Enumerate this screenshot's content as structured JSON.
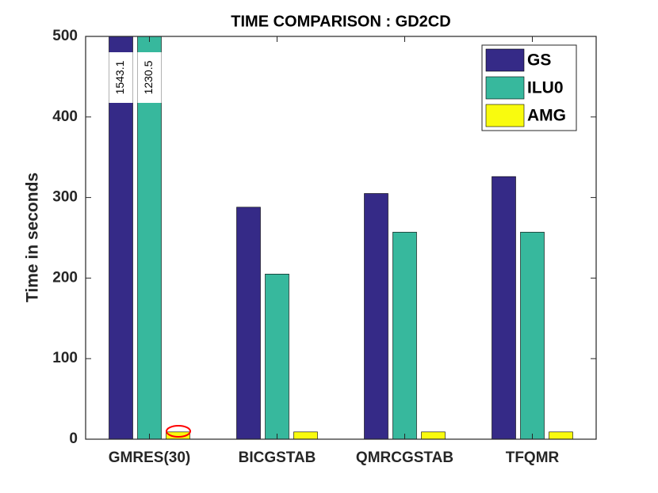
{
  "chart_data": {
    "type": "bar",
    "title": "TIME COMPARISON : GD2CD",
    "ylabel": "Time in seconds",
    "categories": [
      "GMRES(30)",
      "BICGSTAB",
      "QMRCGSTAB",
      "TFQMR"
    ],
    "series": [
      {
        "name": "GS",
        "color": "#352a87",
        "values": [
          1543.1,
          288,
          305,
          326
        ],
        "value_labels": [
          "1543.1",
          null,
          null,
          null
        ]
      },
      {
        "name": "ILU0",
        "color": "#37b89d",
        "values": [
          1230.5,
          205,
          257,
          257
        ],
        "value_labels": [
          "1230.5",
          null,
          null,
          null
        ]
      },
      {
        "name": "AMG",
        "color": "#f9fb0e",
        "values": [
          9,
          9,
          9,
          9
        ]
      }
    ],
    "ylim": [
      0,
      500
    ],
    "yticks": [
      0,
      100,
      200,
      300,
      400,
      500
    ],
    "grid": false,
    "legend": "upper right"
  }
}
